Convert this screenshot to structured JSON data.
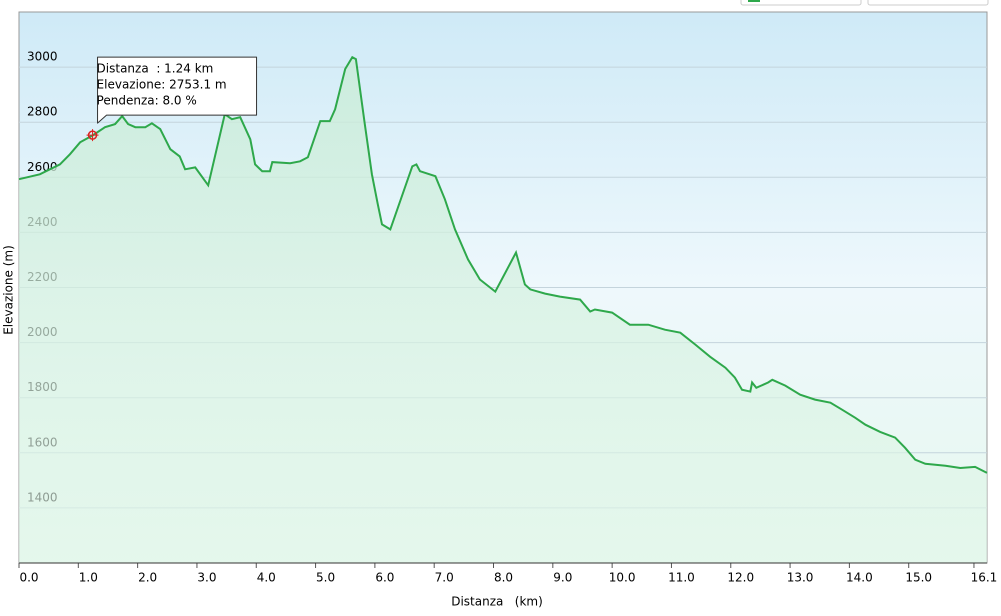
{
  "chart_data": {
    "type": "line",
    "color": "#2ea84b",
    "grid": true,
    "y_label": "Elevazione (m)",
    "x_label": "Distanza   (km)",
    "xlim": [
      0,
      16.32
    ],
    "ylim": [
      1200,
      3200
    ],
    "xticks": [
      {
        "value": 0,
        "label": "0.0"
      },
      {
        "value": 1,
        "label": "1.0"
      },
      {
        "value": 2,
        "label": "2.0"
      },
      {
        "value": 3,
        "label": "3.0"
      },
      {
        "value": 4,
        "label": "4.0"
      },
      {
        "value": 5,
        "label": "5.0"
      },
      {
        "value": 6,
        "label": "6.0"
      },
      {
        "value": 7,
        "label": "7.0"
      },
      {
        "value": 8,
        "label": "8.0"
      },
      {
        "value": 9,
        "label": "9.0"
      },
      {
        "value": 10,
        "label": "10.0"
      },
      {
        "value": 11,
        "label": "11.0"
      },
      {
        "value": 12,
        "label": "12.0"
      },
      {
        "value": 13,
        "label": "13.0"
      },
      {
        "value": 14,
        "label": "14.0"
      },
      {
        "value": 15,
        "label": "15.0"
      },
      16.1
    ],
    "yticks": [
      1400,
      1600,
      1800,
      2000,
      2200,
      2400,
      2600,
      2800,
      3000
    ],
    "x": [
      0.0,
      0.35,
      0.69,
      0.86,
      1.03,
      1.25,
      1.45,
      1.62,
      1.74,
      1.84,
      1.96,
      2.13,
      2.24,
      2.38,
      2.55,
      2.71,
      2.8,
      2.97,
      3.19,
      3.47,
      3.59,
      3.73,
      3.9,
      3.98,
      4.1,
      4.23,
      4.27,
      4.57,
      4.74,
      4.87,
      5.08,
      5.24,
      5.33,
      5.5,
      5.62,
      5.68,
      5.83,
      5.95,
      6.05,
      6.12,
      6.26,
      6.63,
      6.7,
      6.76,
      7.02,
      7.18,
      7.35,
      7.57,
      7.77,
      8.03,
      8.38,
      8.53,
      8.62,
      8.87,
      9.12,
      9.46,
      9.63,
      9.71,
      10.0,
      10.3,
      10.61,
      10.89,
      11.15,
      11.4,
      11.65,
      11.91,
      12.07,
      12.19,
      12.33,
      12.36,
      12.43,
      12.63,
      12.7,
      12.92,
      13.17,
      13.42,
      13.68,
      13.88,
      14.1,
      14.27,
      14.52,
      14.77,
      14.94,
      15.11,
      15.28,
      15.62,
      15.87,
      16.12,
      16.32
    ],
    "values": [
      2593,
      2611,
      2647,
      2684,
      2727,
      2753,
      2782,
      2793,
      2822,
      2793,
      2782,
      2782,
      2796,
      2775,
      2702,
      2676,
      2629,
      2636,
      2571,
      2829,
      2811,
      2818,
      2738,
      2647,
      2622,
      2622,
      2655,
      2651,
      2658,
      2673,
      2804,
      2804,
      2847,
      2993,
      3036,
      3029,
      2793,
      2611,
      2502,
      2429,
      2411,
      2640,
      2647,
      2622,
      2604,
      2520,
      2411,
      2302,
      2229,
      2185,
      2327,
      2211,
      2193,
      2178,
      2167,
      2156,
      2113,
      2120,
      2109,
      2065,
      2065,
      2047,
      2036,
      1993,
      1949,
      1909,
      1873,
      1829,
      1822,
      1855,
      1836,
      1855,
      1865,
      1844,
      1811,
      1793,
      1782,
      1756,
      1727,
      1702,
      1676,
      1655,
      1618,
      1575,
      1560,
      1553,
      1545,
      1549,
      1527
    ],
    "marker": {
      "x": 1.24,
      "y": 2753.1
    },
    "tooltip": [
      "Distanza  : 1.24 km",
      "Elevazione: 2753.1 m",
      "Pendenza: 8.0 %"
    ]
  }
}
